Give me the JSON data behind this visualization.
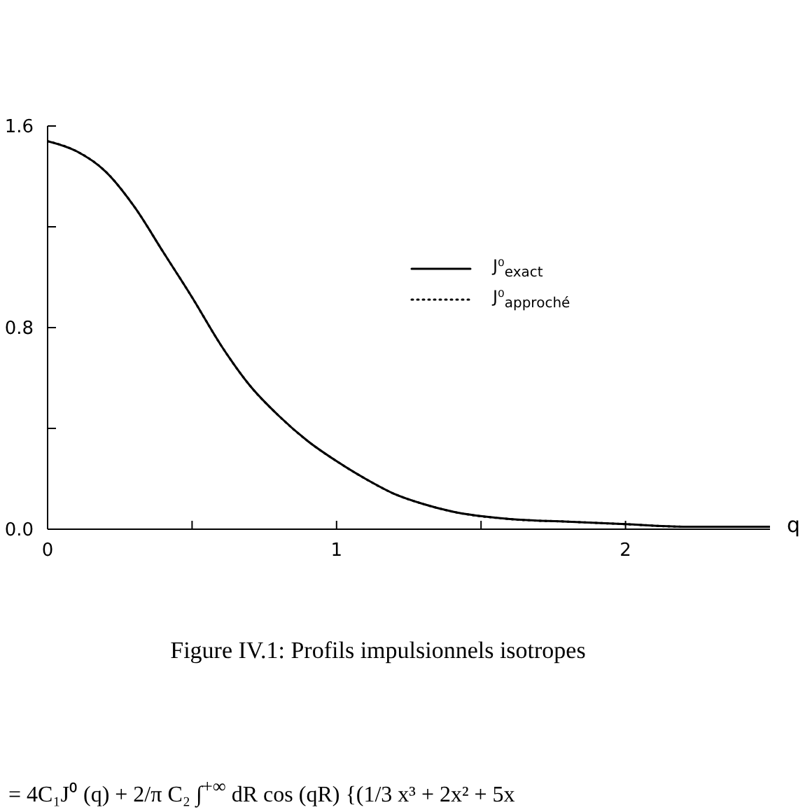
{
  "chart_data": {
    "type": "line",
    "x": [
      0,
      0.1,
      0.2,
      0.3,
      0.4,
      0.5,
      0.6,
      0.7,
      0.8,
      0.9,
      1.0,
      1.1,
      1.2,
      1.3,
      1.4,
      1.6,
      1.8,
      2.0,
      2.2,
      2.5
    ],
    "series": [
      {
        "name": "J⁰$_{exact}$",
        "color": "#000000",
        "line_style": "solid",
        "values": [
          1.54,
          1.5,
          1.42,
          1.28,
          1.1,
          0.92,
          0.73,
          0.57,
          0.45,
          0.35,
          0.27,
          0.2,
          0.14,
          0.1,
          0.07,
          0.04,
          0.03,
          0.02,
          0.01,
          0.01
        ]
      },
      {
        "name": "J⁰$_{approché}$",
        "color": "#000000",
        "line_style": "dotted",
        "values": [
          1.54,
          1.5,
          1.42,
          1.28,
          1.1,
          0.92,
          0.73,
          0.57,
          0.45,
          0.35,
          0.27,
          0.2,
          0.14,
          0.1,
          0.07,
          0.04,
          0.03,
          0.02,
          0.01,
          0.01
        ]
      }
    ],
    "xlabel": "q",
    "xlim": [
      0,
      2.5
    ],
    "xticks": [
      0,
      {
        "value": 0.5,
        "label": null
      },
      1,
      {
        "value": 1.5,
        "label": null
      },
      2
    ],
    "ylim": [
      0,
      1.6
    ],
    "yticks": [
      {
        "value": 0,
        "label": "0.0"
      },
      {
        "value": 0.4,
        "label": null
      },
      {
        "value": 0.8,
        "label": "0.8"
      },
      {
        "value": 1.2,
        "label": null
      },
      {
        "value": 1.6,
        "label": "1.6"
      }
    ],
    "legend": "right",
    "annotations": [
      "Figure IV.1: Profils impulsionnels isotropes",
      "= 4C₁J⁰ (q) + 2/π C₂ ∫$^{+∞}$ dR cos (qR) {(1/3 x³ + 2x² + 5x"
    ]
  }
}
